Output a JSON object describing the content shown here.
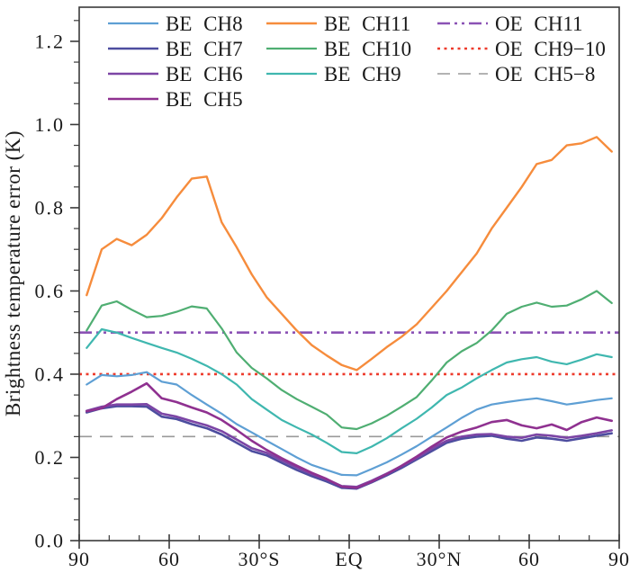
{
  "chart_data": {
    "type": "line",
    "title": "",
    "xlabel": "",
    "ylabel": "Brightness temperature error (K)",
    "xlim": [
      -90,
      90
    ],
    "ylim": [
      0,
      1.282
    ],
    "grid": false,
    "legend_position": "top-inside",
    "x_ticks": {
      "major_values": [
        -90,
        -60,
        -30,
        0,
        30,
        60,
        90
      ],
      "labels": [
        "90",
        "60",
        "30°S",
        "EQ",
        "30°N",
        "60",
        "90"
      ],
      "minor_step": 10
    },
    "y_ticks": {
      "major_values": [
        0.0,
        0.2,
        0.4,
        0.6,
        0.8,
        1.0,
        1.2
      ],
      "labels": [
        "0.0",
        "0.2",
        "0.4",
        "0.6",
        "0.8",
        "1.0",
        "1.2"
      ],
      "minor_step": 0.05
    },
    "x": [
      -87.5,
      -82.5,
      -77.5,
      -72.5,
      -67.5,
      -62.5,
      -57.5,
      -52.5,
      -47.5,
      -42.5,
      -37.5,
      -32.5,
      -27.5,
      -22.5,
      -17.5,
      -12.5,
      -7.5,
      -2.5,
      2.5,
      7.5,
      12.5,
      17.5,
      22.5,
      27.5,
      32.5,
      37.5,
      42.5,
      47.5,
      52.5,
      57.5,
      62.5,
      67.5,
      72.5,
      77.5,
      82.5,
      87.5
    ],
    "series": [
      {
        "name": "BE CH8",
        "color": "#5E9FD4",
        "width": 2.2,
        "values": [
          0.375,
          0.398,
          0.395,
          0.398,
          0.405,
          0.382,
          0.375,
          0.35,
          0.327,
          0.305,
          0.28,
          0.26,
          0.24,
          0.22,
          0.2,
          0.182,
          0.17,
          0.158,
          0.157,
          0.172,
          0.188,
          0.207,
          0.227,
          0.25,
          0.272,
          0.295,
          0.315,
          0.327,
          0.333,
          0.338,
          0.342,
          0.335,
          0.327,
          0.332,
          0.338,
          0.342
        ]
      },
      {
        "name": "BE CH7",
        "color": "#4D4D9F",
        "width": 2.6,
        "values": [
          0.308,
          0.318,
          0.323,
          0.323,
          0.322,
          0.298,
          0.292,
          0.28,
          0.27,
          0.255,
          0.235,
          0.215,
          0.205,
          0.187,
          0.17,
          0.155,
          0.142,
          0.127,
          0.125,
          0.14,
          0.157,
          0.175,
          0.195,
          0.215,
          0.235,
          0.245,
          0.25,
          0.252,
          0.245,
          0.24,
          0.248,
          0.245,
          0.24,
          0.246,
          0.252,
          0.258
        ]
      },
      {
        "name": "BE CH6",
        "color": "#7C45A5",
        "width": 2.6,
        "values": [
          0.312,
          0.322,
          0.327,
          0.327,
          0.328,
          0.305,
          0.298,
          0.287,
          0.277,
          0.263,
          0.243,
          0.222,
          0.211,
          0.193,
          0.176,
          0.16,
          0.147,
          0.131,
          0.129,
          0.144,
          0.161,
          0.179,
          0.199,
          0.221,
          0.24,
          0.25,
          0.255,
          0.256,
          0.25,
          0.247,
          0.255,
          0.252,
          0.247,
          0.252,
          0.258,
          0.265
        ]
      },
      {
        "name": "BE CH5",
        "color": "#8F3190",
        "width": 2.6,
        "values": [
          0.311,
          0.318,
          0.34,
          0.358,
          0.378,
          0.342,
          0.333,
          0.32,
          0.308,
          0.29,
          0.266,
          0.24,
          0.218,
          0.198,
          0.18,
          0.163,
          0.148,
          0.13,
          0.127,
          0.142,
          0.16,
          0.18,
          0.202,
          0.226,
          0.248,
          0.262,
          0.272,
          0.285,
          0.29,
          0.277,
          0.27,
          0.279,
          0.266,
          0.285,
          0.296,
          0.288
        ]
      },
      {
        "name": "BE CH11",
        "color": "#F68C3C",
        "width": 2.4,
        "values": [
          0.59,
          0.7,
          0.725,
          0.71,
          0.735,
          0.775,
          0.825,
          0.87,
          0.875,
          0.765,
          0.705,
          0.64,
          0.585,
          0.545,
          0.505,
          0.47,
          0.445,
          0.422,
          0.41,
          0.437,
          0.465,
          0.49,
          0.52,
          0.56,
          0.6,
          0.645,
          0.69,
          0.75,
          0.8,
          0.85,
          0.905,
          0.915,
          0.95,
          0.955,
          0.97,
          0.935
        ]
      },
      {
        "name": "BE CH10",
        "color": "#4FAE72",
        "width": 2.2,
        "values": [
          0.505,
          0.565,
          0.575,
          0.555,
          0.537,
          0.54,
          0.55,
          0.563,
          0.558,
          0.51,
          0.452,
          0.415,
          0.39,
          0.362,
          0.34,
          0.322,
          0.303,
          0.272,
          0.268,
          0.282,
          0.3,
          0.322,
          0.345,
          0.385,
          0.428,
          0.455,
          0.475,
          0.505,
          0.545,
          0.562,
          0.572,
          0.562,
          0.565,
          0.58,
          0.6,
          0.571
        ]
      },
      {
        "name": "BE CH9",
        "color": "#3FB7AF",
        "width": 2.2,
        "values": [
          0.463,
          0.508,
          0.5,
          0.487,
          0.475,
          0.463,
          0.452,
          0.437,
          0.42,
          0.4,
          0.375,
          0.34,
          0.315,
          0.29,
          0.272,
          0.255,
          0.235,
          0.213,
          0.21,
          0.226,
          0.246,
          0.27,
          0.293,
          0.32,
          0.35,
          0.368,
          0.39,
          0.41,
          0.428,
          0.436,
          0.441,
          0.43,
          0.424,
          0.435,
          0.448,
          0.441
        ]
      }
    ],
    "ref_lines": [
      {
        "name": "OE CH11",
        "value": 0.5,
        "color": "#8B52B5",
        "width": 2.6,
        "dash": "14 5 3 5 3 5"
      },
      {
        "name": "OE CH9−10",
        "value": 0.4,
        "color": "#EE3B2C",
        "width": 2.6,
        "dash": "3 4.5"
      },
      {
        "name": "OE CH5−8",
        "value": 0.25,
        "color": "#9A9A9A",
        "width": 1.6,
        "dash": "14 9"
      }
    ],
    "legend": {
      "columns": [
        {
          "entries": [
            "BE CH8",
            "BE CH7",
            "BE CH6",
            "BE CH5"
          ]
        },
        {
          "entries": [
            "BE CH11",
            "BE CH10",
            "BE CH9"
          ]
        },
        {
          "entries": [
            "OE CH11",
            "OE CH9−10",
            "OE CH5−8"
          ]
        }
      ]
    }
  }
}
